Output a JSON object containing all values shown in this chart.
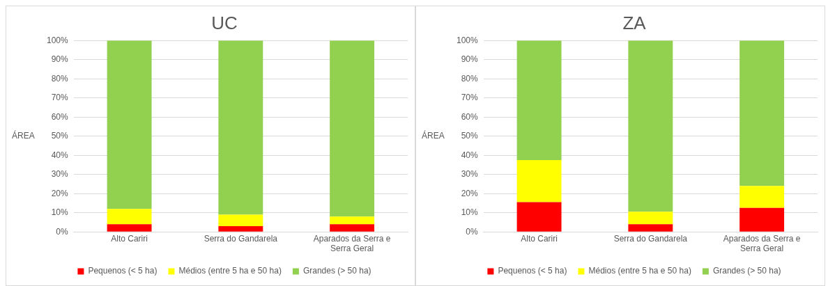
{
  "chart_data": [
    {
      "type": "bar",
      "title": "UC",
      "ylabel": "ÁREA",
      "categories": [
        "Alto Cariri",
        "Serra do Gandarela",
        "Aparados da Serra e Serra Geral"
      ],
      "stacked": true,
      "series": [
        {
          "name": "Pequenos (< 5 ha)",
          "color": "#ff0000",
          "values": [
            4,
            3,
            4
          ]
        },
        {
          "name": "Médios (entre 5 ha e 50 ha)",
          "color": "#ffff00",
          "values": [
            8,
            6,
            4
          ]
        },
        {
          "name": "Grandes (> 50 ha)",
          "color": "#92d050",
          "values": [
            88,
            91,
            92
          ]
        }
      ],
      "ylim": [
        0,
        100
      ],
      "yticks": [
        {
          "value": 0,
          "label": "0%"
        },
        {
          "value": 10,
          "label": "10%"
        },
        {
          "value": 20,
          "label": "20%"
        },
        {
          "value": 30,
          "label": "30%"
        },
        {
          "value": 40,
          "label": "40%"
        },
        {
          "value": 50,
          "label": "50%"
        },
        {
          "value": 60,
          "label": "60%"
        },
        {
          "value": 70,
          "label": "70%"
        },
        {
          "value": 80,
          "label": "80%"
        },
        {
          "value": 90,
          "label": "90%"
        },
        {
          "value": 100,
          "label": "100%"
        }
      ],
      "grid": "y",
      "legend": "bottom"
    },
    {
      "type": "bar",
      "title": "ZA",
      "ylabel": "ÁREA",
      "categories": [
        "Alto Cariri",
        "Serra do Gandarela",
        "Aparados da Serra e Serra Geral"
      ],
      "stacked": true,
      "series": [
        {
          "name": "Pequenos (< 5 ha)",
          "color": "#ff0000",
          "values": [
            15.5,
            4,
            12.5
          ]
        },
        {
          "name": "Médios (entre 5 ha e 50 ha)",
          "color": "#ffff00",
          "values": [
            22,
            6.5,
            11.5
          ]
        },
        {
          "name": "Grandes (> 50 ha)",
          "color": "#92d050",
          "values": [
            62.5,
            89.5,
            76
          ]
        }
      ],
      "ylim": [
        0,
        100
      ],
      "yticks": [
        {
          "value": 0,
          "label": "0%"
        },
        {
          "value": 10,
          "label": "10%"
        },
        {
          "value": 20,
          "label": "20%"
        },
        {
          "value": 30,
          "label": "30%"
        },
        {
          "value": 40,
          "label": "40%"
        },
        {
          "value": 50,
          "label": "50%"
        },
        {
          "value": 60,
          "label": "60%"
        },
        {
          "value": 70,
          "label": "70%"
        },
        {
          "value": 80,
          "label": "80%"
        },
        {
          "value": 90,
          "label": "90%"
        },
        {
          "value": 100,
          "label": "100%"
        }
      ],
      "grid": "y",
      "legend": "bottom"
    }
  ]
}
